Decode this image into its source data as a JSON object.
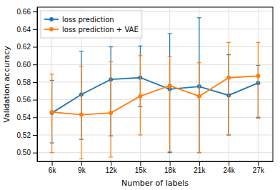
{
  "chart_data": {
    "type": "line",
    "x_label": "Number of labels",
    "y_label": "Validation accuracy",
    "categories": [
      "6k",
      "9k",
      "12k",
      "15k",
      "18k",
      "21k",
      "24k",
      "27k"
    ],
    "series": [
      {
        "name": "loss prediction",
        "color": "#1f77b4",
        "marker": "circle",
        "values": [
          0.545,
          0.566,
          0.583,
          0.585,
          0.572,
          0.575,
          0.565,
          0.579
        ],
        "error_lower": [
          0.034,
          0.051,
          0.064,
          0.033,
          0.072,
          0.075,
          0.045,
          0.039
        ],
        "error_upper": [
          0.037,
          0.049,
          0.037,
          0.036,
          0.063,
          0.078,
          0.046,
          0.02
        ]
      },
      {
        "name": "loss prediction + VAE",
        "color": "#ff7f0e",
        "marker": "circle",
        "values": [
          0.546,
          0.543,
          0.545,
          0.564,
          0.576,
          0.564,
          0.585,
          0.587
        ],
        "error_lower": [
          0.046,
          0.05,
          0.05,
          0.044,
          0.075,
          0.064,
          0.065,
          0.048
        ],
        "error_upper": [
          0.043,
          0.055,
          0.058,
          0.046,
          0.033,
          0.038,
          0.04,
          0.038
        ]
      }
    ],
    "ylim": [
      0.49,
      0.665
    ],
    "yticks": [
      {
        "value": 0.5,
        "label": "0.50"
      },
      0.52,
      0.54,
      0.56,
      0.58,
      {
        "value": 0.6,
        "label": "0.60"
      },
      0.62,
      0.64,
      0.66
    ],
    "grid": true,
    "legend": "upper left"
  }
}
